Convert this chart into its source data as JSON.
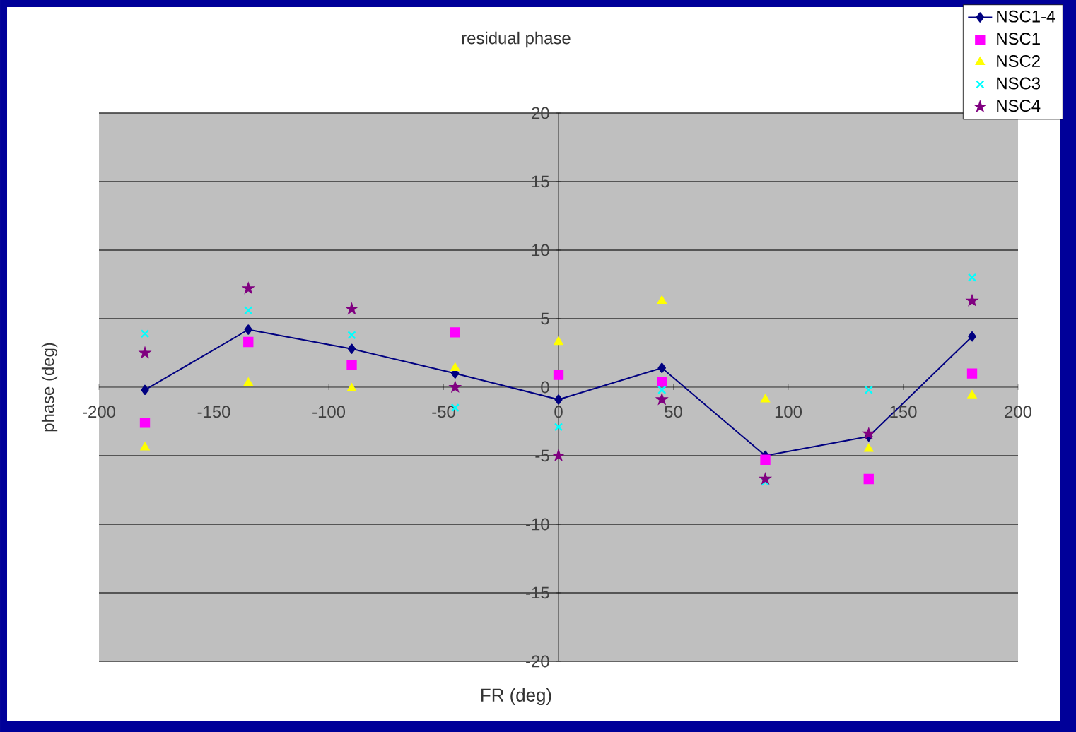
{
  "chart_data": {
    "type": "scatter",
    "title": "residual phase",
    "xlabel": "FR (deg)",
    "ylabel": "phase (deg)",
    "x": [
      -180,
      -135,
      -90,
      -45,
      0,
      45,
      90,
      135,
      180
    ],
    "series": [
      {
        "name": "NSC1-4",
        "type": "line",
        "marker": "diamond",
        "line_style": "solid",
        "color": "#000080",
        "values": [
          -0.2,
          4.2,
          2.8,
          1.0,
          -0.9,
          1.4,
          -5.0,
          -3.6,
          3.7
        ]
      },
      {
        "name": "NSC1",
        "marker": "square",
        "color": "#ff00ff",
        "values": [
          -2.6,
          3.3,
          1.6,
          4.0,
          0.9,
          0.4,
          -5.3,
          -6.7,
          1.0
        ]
      },
      {
        "name": "NSC2",
        "marker": "triangle",
        "color": "#ffff00",
        "values": [
          -4.4,
          0.3,
          -0.1,
          1.4,
          3.3,
          6.3,
          -0.9,
          -4.5,
          -0.6
        ]
      },
      {
        "name": "NSC3",
        "marker": "cross",
        "color": "#00ffff",
        "values": [
          3.9,
          5.6,
          3.8,
          -1.5,
          -2.9,
          -0.2,
          -6.9,
          -0.2,
          8.0
        ]
      },
      {
        "name": "NSC4",
        "marker": "star",
        "color": "#800080",
        "values": [
          2.5,
          7.2,
          5.7,
          0.0,
          -5.0,
          -0.9,
          -6.7,
          -3.4,
          6.3
        ]
      }
    ],
    "xlim": [
      -200,
      200
    ],
    "ylim": [
      -20,
      20
    ],
    "xticks": [
      -200,
      -150,
      -100,
      -50,
      0,
      50,
      100,
      150,
      200
    ],
    "yticks": [
      -20,
      -15,
      -10,
      -5,
      0,
      5,
      10,
      15,
      20
    ],
    "grid": "y",
    "legend": "top right"
  }
}
